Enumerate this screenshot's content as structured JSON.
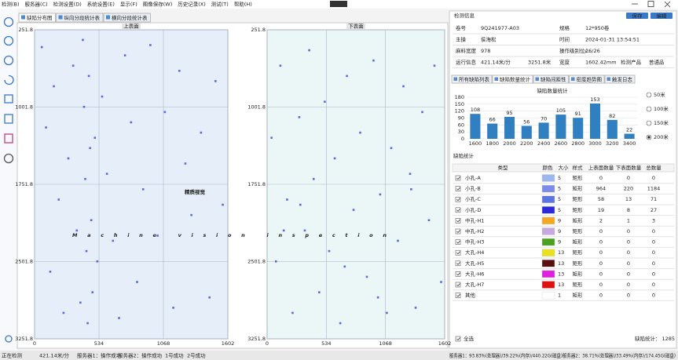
{
  "menu": [
    "检测(B)",
    "服务器(C)",
    "检测设置(D)",
    "系统设置(E)",
    "显示(F)",
    "图像保存(W)",
    "历史记录(X)",
    "测试(T)",
    "帮助(H)"
  ],
  "tabs": [
    "缺陷分布图",
    "纵向分段统计表",
    "横向分段统计表"
  ],
  "surfaces": [
    {
      "title": "上表面",
      "xlim": [
        0,
        1602
      ],
      "ylim": [
        251.8,
        3251.8
      ],
      "xticks": [
        0,
        534,
        1068,
        1602
      ],
      "yticks": [
        251.8,
        1001.8,
        1751.8,
        2501.8,
        3251.8
      ],
      "color": "#5a6ad6",
      "background": "#e6eef9",
      "x": [
        60,
        95,
        130,
        160,
        200,
        240,
        280,
        320,
        350,
        380,
        400,
        410,
        420,
        430,
        440,
        450,
        460,
        470,
        480,
        500,
        520,
        560,
        600,
        650,
        700,
        750,
        800,
        850,
        900,
        960,
        1020,
        1080,
        1150,
        1200,
        1250,
        1300,
        1380,
        1450,
        1500,
        1560
      ],
      "y": [
        420,
        1200,
        2600,
        800,
        1900,
        3000,
        1500,
        600,
        2200,
        2900,
        350,
        1000,
        1700,
        2400,
        3100,
        700,
        1400,
        2100,
        2800,
        1300,
        2500,
        900,
        1650,
        2300,
        3050,
        500,
        1150,
        2700,
        1800,
        400,
        2250,
        1050,
        2950,
        650,
        1550,
        2050,
        1250,
        2850,
        750,
        1950
      ]
    },
    {
      "title": "下表面",
      "xlim": [
        0,
        1602
      ],
      "ylim": [
        251.8,
        3251.8
      ],
      "xticks": [
        0,
        534,
        1068,
        1602
      ],
      "yticks": [
        251.8,
        1001.8,
        1751.8,
        2501.8,
        3251.8
      ],
      "color": "#5a6ad6",
      "background": "#eaf7f6",
      "x": [
        40,
        80,
        120,
        180,
        230,
        290,
        340,
        380,
        420,
        470,
        520,
        560,
        610,
        660,
        720,
        780,
        840,
        900,
        960,
        1020,
        1080,
        1120,
        1180,
        1230,
        1290,
        1340,
        1400,
        1460,
        1510,
        1570,
        300,
        700,
        1000,
        1300,
        150
      ],
      "y": [
        1300,
        2500,
        600,
        1900,
        3000,
        1100,
        2200,
        450,
        1700,
        2800,
        950,
        2400,
        1500,
        3100,
        700,
        2000,
        1250,
        2650,
        550,
        1850,
        3000,
        1400,
        2300,
        800,
        1650,
        2950,
        1050,
        2100,
        600,
        2700,
        1950,
        2550,
        2850,
        1800,
        2200
      ]
    }
  ],
  "watermark": {
    "title": "精质视觉",
    "subtitle": "Machine vision inspection"
  },
  "info": {
    "title": "检测信息",
    "buttons": [
      "保存",
      "编辑"
    ],
    "rows": [
      [
        "卷号",
        "9Q241977-A03",
        "规格",
        "12*950卷"
      ],
      [
        "主操",
        "侯海松",
        "时间",
        "2024-01-31 13:54:51"
      ],
      [
        "麻料宽度",
        "978",
        "操作级别位/...",
        "26/26"
      ],
      [
        "运行信息",
        "421.14米/分",
        "3251.8米",
        "宽度",
        "1602.42mm",
        "检测产品",
        "普通品"
      ]
    ]
  },
  "stat_tabs": [
    "所有缺陷列表",
    "缺陷数量统计",
    "缺陷间距性",
    "密度趋势图",
    "触发日志"
  ],
  "chart_data": {
    "type": "bar",
    "title": "缺陷数量统计",
    "categories": [
      "1600",
      "1800",
      "2000",
      "2200",
      "2400",
      "2600",
      "2800",
      "3000",
      "3200",
      "3400"
    ],
    "values": [
      108,
      66,
      95,
      56,
      70,
      105,
      91,
      153,
      82,
      22
    ],
    "color": "#2f7fc1",
    "ylim": [
      0,
      180
    ],
    "yticks": [
      0,
      30,
      60,
      90,
      120,
      150,
      180
    ],
    "grid": true
  },
  "interval_options": [
    "50米",
    "100米",
    "150米",
    "200米"
  ],
  "interval_selected": 3,
  "table": {
    "title": "缺陷统计",
    "header": [
      "类型",
      "颜色",
      "大小",
      "样式",
      "上表面数量",
      "下表面数量",
      "总数量"
    ],
    "rows": [
      [
        "小孔-A",
        "#9db8f0",
        5,
        "矩形",
        0,
        0,
        0
      ],
      [
        "小孔-B",
        "#7a8ce8",
        5,
        "矩形",
        964,
        220,
        1184
      ],
      [
        "小孔-C",
        "#5a74e0",
        5,
        "矩形",
        58,
        13,
        71
      ],
      [
        "小孔-D",
        "#2a2ad8",
        5,
        "矩形",
        19,
        8,
        27
      ],
      [
        "中孔-H1",
        "#f5a623",
        9,
        "矩形",
        2,
        1,
        3
      ],
      [
        "中孔-H2",
        "#c8a8e0",
        9,
        "矩形",
        0,
        0,
        0
      ],
      [
        "中孔-H3",
        "#4aa020",
        9,
        "矩形",
        0,
        0,
        0
      ],
      [
        "大孔-H4",
        "#e8e020",
        13,
        "矩形",
        0,
        0,
        0
      ],
      [
        "大孔-H5",
        "#5a1010",
        13,
        "矩形",
        0,
        0,
        0
      ],
      [
        "大孔-H6",
        "#e020e0",
        13,
        "矩形",
        0,
        0,
        0
      ],
      [
        "大孔-H7",
        "#e01010",
        13,
        "矩形",
        0,
        0,
        0
      ],
      [
        "其他",
        "#ffffff",
        1,
        "矩形",
        0,
        0,
        0
      ]
    ]
  },
  "select_all": "全选",
  "total_label": "缺陷统计：",
  "total": 1285,
  "status": [
    "正在检测",
    "421.14米/分",
    "服务器1：操作成功",
    "服务器2：操作成功",
    "1号成功",
    "2号成功"
  ],
  "server_status": "服务器1：93.83%(处理器)/39.22%(内存)/440.22G(磁盘)服务器2：38.71%(处理器)/33.49%(内存)/174.45G(磁盘)"
}
